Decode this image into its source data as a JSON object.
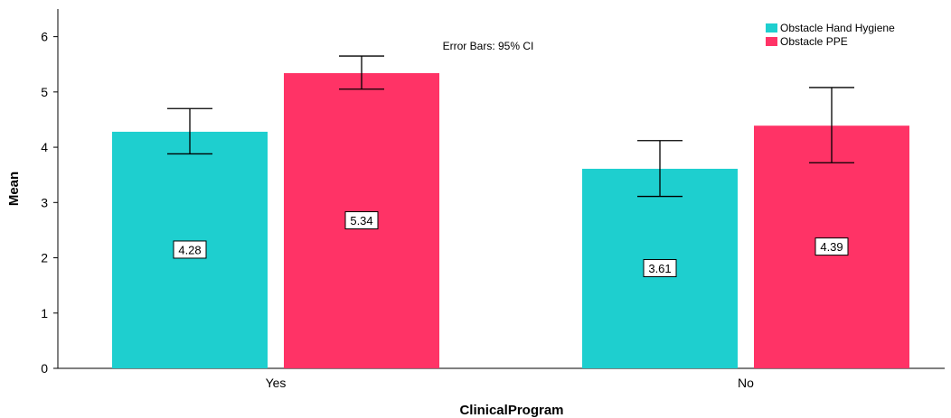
{
  "chart_data": {
    "type": "bar",
    "xlabel": "ClinicalProgram",
    "ylabel": "Mean",
    "categories": [
      "Yes",
      "No"
    ],
    "ylim": [
      0,
      6.5
    ],
    "yticks": [
      0,
      1,
      2,
      3,
      4,
      5,
      6
    ],
    "grid": false,
    "legend_position": "top-right",
    "annotation": "Error Bars: 95% CI",
    "series": [
      {
        "name": "Obstacle Hand Hygiene",
        "color": "#1ECFCF",
        "values": [
          4.28,
          3.61
        ],
        "labels": [
          "4.28",
          "3.61"
        ],
        "ci_lower": [
          3.88,
          3.11
        ],
        "ci_upper": [
          4.7,
          4.12
        ]
      },
      {
        "name": "Obstacle PPE",
        "color": "#FF3366",
        "values": [
          5.34,
          4.39
        ],
        "labels": [
          "5.34",
          "4.39"
        ],
        "ci_lower": [
          5.05,
          3.72
        ],
        "ci_upper": [
          5.65,
          5.08
        ]
      }
    ]
  }
}
